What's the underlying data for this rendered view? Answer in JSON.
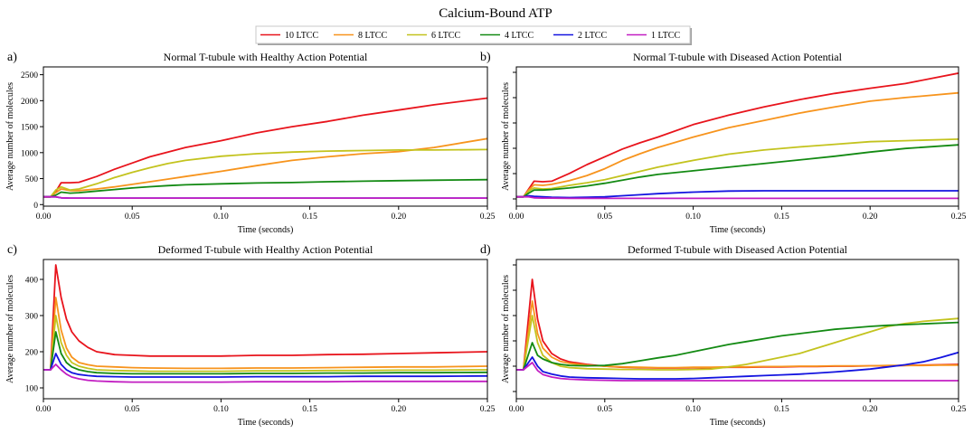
{
  "figure_title": "Calcium-Bound ATP",
  "legend": [
    {
      "label": "10 LTCC",
      "color": "#e8141c"
    },
    {
      "label": "8 LTCC",
      "color": "#f7941d"
    },
    {
      "label": "6 LTCC",
      "color": "#c3c31e"
    },
    {
      "label": "4 LTCC",
      "color": "#138a13"
    },
    {
      "label": "2 LTCC",
      "color": "#1414e0"
    },
    {
      "label": "1 LTCC",
      "color": "#c21ec2"
    }
  ],
  "chart_data": [
    {
      "type": "line",
      "panel_letter": "a)",
      "title": "Normal T-tubule with Healthy Action Potential",
      "xlabel": "Time (seconds)",
      "ylabel": "Average number of molecules",
      "xlim": [
        0,
        0.25
      ],
      "ylim": [
        -30,
        2650
      ],
      "xticks": [
        0,
        0.05,
        0.1,
        0.15,
        0.2,
        0.25
      ],
      "xtick_labels": [
        "0.00",
        "0.05",
        "0.10",
        "0.15",
        "0.20",
        "0.25"
      ],
      "yticks": [
        0,
        500,
        1000,
        1500,
        2000,
        2500
      ],
      "ytick_labels": [
        "0",
        "500",
        "1000",
        "1500",
        "2000",
        "2500"
      ],
      "x": [
        0,
        0.004,
        0.007,
        0.01,
        0.015,
        0.02,
        0.03,
        0.04,
        0.05,
        0.06,
        0.07,
        0.08,
        0.1,
        0.12,
        0.14,
        0.16,
        0.18,
        0.2,
        0.22,
        0.25
      ],
      "series": [
        {
          "name": "10 LTCC",
          "values": [
            150,
            150,
            250,
            420,
            420,
            430,
            540,
            680,
            800,
            920,
            1010,
            1100,
            1230,
            1380,
            1500,
            1600,
            1720,
            1820,
            1920,
            2050
          ]
        },
        {
          "name": "8 LTCC",
          "values": [
            150,
            150,
            230,
            300,
            270,
            270,
            300,
            340,
            390,
            440,
            490,
            540,
            640,
            750,
            850,
            920,
            980,
            1020,
            1100,
            1270
          ]
        },
        {
          "name": "6 LTCC",
          "values": [
            150,
            150,
            280,
            340,
            280,
            300,
            400,
            520,
            620,
            710,
            790,
            850,
            930,
            980,
            1010,
            1030,
            1040,
            1050,
            1050,
            1060
          ]
        },
        {
          "name": "4 LTCC",
          "values": [
            150,
            150,
            180,
            240,
            220,
            230,
            260,
            290,
            320,
            345,
            365,
            380,
            400,
            415,
            425,
            440,
            450,
            460,
            470,
            480
          ]
        },
        {
          "name": "2 LTCC",
          "values": [
            150,
            150,
            150,
            130,
            125,
            125,
            125,
            125,
            125,
            125,
            125,
            125,
            125,
            125,
            125,
            125,
            125,
            125,
            125,
            125
          ]
        },
        {
          "name": "1 LTCC",
          "values": [
            150,
            150,
            150,
            130,
            125,
            125,
            125,
            125,
            125,
            125,
            125,
            125,
            125,
            125,
            125,
            125,
            125,
            125,
            125,
            125
          ]
        }
      ]
    },
    {
      "type": "line",
      "panel_letter": "b)",
      "title": "Normal T-tubule with Diseased Action Potential",
      "xlabel": "Time (seconds)",
      "ylabel": "Average number of molecules",
      "xlim": [
        0,
        0.25
      ],
      "ylim": [
        -30,
        2650
      ],
      "xticks": [
        0,
        0.05,
        0.1,
        0.15,
        0.2,
        0.25
      ],
      "xtick_labels": [
        "0.00",
        "0.05",
        "0.10",
        "0.15",
        "0.20",
        "0.25"
      ],
      "yticks": [],
      "ytick_labels": [],
      "x": [
        0,
        0.004,
        0.007,
        0.01,
        0.015,
        0.02,
        0.03,
        0.04,
        0.05,
        0.06,
        0.07,
        0.08,
        0.1,
        0.12,
        0.14,
        0.16,
        0.18,
        0.2,
        0.22,
        0.25
      ],
      "series": [
        {
          "name": "10 LTCC",
          "values": [
            150,
            150,
            300,
            450,
            440,
            450,
            600,
            770,
            920,
            1070,
            1190,
            1300,
            1540,
            1720,
            1880,
            2020,
            2140,
            2240,
            2330,
            2530
          ]
        },
        {
          "name": "8 LTCC",
          "values": [
            150,
            150,
            280,
            380,
            370,
            390,
            460,
            560,
            690,
            850,
            980,
            1100,
            1300,
            1480,
            1620,
            1760,
            1880,
            1990,
            2060,
            2150
          ]
        },
        {
          "name": "6 LTCC",
          "values": [
            150,
            150,
            260,
            320,
            300,
            310,
            370,
            420,
            480,
            560,
            640,
            720,
            850,
            970,
            1050,
            1110,
            1160,
            1210,
            1230,
            1260
          ]
        },
        {
          "name": "4 LTCC",
          "values": [
            150,
            150,
            220,
            280,
            280,
            290,
            320,
            360,
            410,
            470,
            530,
            580,
            650,
            720,
            790,
            860,
            930,
            1010,
            1080,
            1150
          ]
        },
        {
          "name": "2 LTCC",
          "values": [
            150,
            150,
            170,
            160,
            150,
            140,
            135,
            140,
            150,
            170,
            190,
            210,
            240,
            260,
            265,
            265,
            265,
            265,
            265,
            265
          ]
        },
        {
          "name": "1 LTCC",
          "values": [
            150,
            150,
            150,
            130,
            125,
            125,
            120,
            120,
            120,
            120,
            120,
            120,
            120,
            120,
            120,
            120,
            120,
            120,
            120,
            120
          ]
        }
      ]
    },
    {
      "type": "line",
      "panel_letter": "c)",
      "title": "Deformed T-tubule with Healthy Action Potential",
      "xlabel": "Time (seconds)",
      "ylabel": "Average number of molecules",
      "xlim": [
        0,
        0.25
      ],
      "ylim": [
        70,
        455
      ],
      "xticks": [
        0,
        0.05,
        0.1,
        0.15,
        0.2,
        0.25
      ],
      "xtick_labels": [
        "0.00",
        "0.05",
        "0.10",
        "0.15",
        "0.20",
        "0.25"
      ],
      "yticks": [
        100,
        200,
        300,
        400
      ],
      "ytick_labels": [
        "100",
        "200",
        "300",
        "400"
      ],
      "x": [
        0,
        0.004,
        0.007,
        0.01,
        0.013,
        0.016,
        0.02,
        0.025,
        0.03,
        0.04,
        0.05,
        0.06,
        0.08,
        0.1,
        0.12,
        0.14,
        0.16,
        0.18,
        0.2,
        0.22,
        0.25
      ],
      "series": [
        {
          "name": "10 LTCC",
          "values": [
            150,
            150,
            440,
            350,
            290,
            255,
            230,
            212,
            200,
            192,
            190,
            188,
            188,
            188,
            190,
            190,
            192,
            193,
            195,
            197,
            200
          ]
        },
        {
          "name": "8 LTCC",
          "values": [
            150,
            150,
            350,
            260,
            210,
            185,
            170,
            164,
            160,
            158,
            156,
            155,
            154,
            154,
            155,
            155,
            156,
            157,
            158,
            158,
            160
          ]
        },
        {
          "name": "6 LTCC",
          "values": [
            150,
            150,
            300,
            225,
            190,
            170,
            160,
            154,
            150,
            148,
            147,
            146,
            146,
            146,
            147,
            147,
            148,
            148,
            149,
            149,
            150
          ]
        },
        {
          "name": "4 LTCC",
          "values": [
            150,
            150,
            255,
            195,
            170,
            158,
            150,
            145,
            142,
            140,
            139,
            139,
            139,
            139,
            140,
            140,
            141,
            141,
            142,
            142,
            143
          ]
        },
        {
          "name": "2 LTCC",
          "values": [
            150,
            150,
            195,
            165,
            150,
            142,
            137,
            134,
            132,
            131,
            130,
            130,
            130,
            130,
            131,
            131,
            131,
            132,
            132,
            132,
            133
          ]
        },
        {
          "name": "1 LTCC",
          "values": [
            150,
            150,
            165,
            150,
            138,
            130,
            125,
            121,
            119,
            117,
            116,
            116,
            116,
            116,
            117,
            117,
            117,
            118,
            118,
            118,
            118
          ]
        }
      ]
    },
    {
      "type": "line",
      "panel_letter": "d)",
      "title": "Deformed T-tubule with Diseased Action Potential",
      "xlabel": "Time (seconds)",
      "ylabel": "Average number of molecules",
      "xlim": [
        0,
        0.25
      ],
      "ylim": [
        70,
        455
      ],
      "xticks": [
        0,
        0.05,
        0.1,
        0.15,
        0.2,
        0.25
      ],
      "xtick_labels": [
        "0.00",
        "0.05",
        "0.10",
        "0.15",
        "0.20",
        "0.25"
      ],
      "yticks": [],
      "ytick_labels": [],
      "x": [
        0,
        0.004,
        0.009,
        0.012,
        0.015,
        0.02,
        0.025,
        0.03,
        0.04,
        0.05,
        0.06,
        0.07,
        0.08,
        0.09,
        0.1,
        0.11,
        0.12,
        0.13,
        0.14,
        0.15,
        0.16,
        0.17,
        0.18,
        0.19,
        0.2,
        0.21,
        0.22,
        0.23,
        0.24,
        0.25
      ],
      "series": [
        {
          "name": "10 LTCC",
          "values": [
            150,
            150,
            400,
            290,
            230,
            195,
            180,
            172,
            165,
            160,
            157,
            156,
            155,
            155,
            156,
            156,
            157,
            157,
            158,
            158,
            159,
            159,
            160,
            160,
            161,
            161,
            162,
            163,
            164,
            165
          ]
        },
        {
          "name": "8 LTCC",
          "values": [
            150,
            150,
            340,
            250,
            210,
            185,
            173,
            168,
            163,
            160,
            158,
            157,
            156,
            156,
            157,
            157,
            158,
            158,
            159,
            159,
            160,
            160,
            161,
            161,
            161,
            162,
            162,
            162,
            163,
            163
          ]
        },
        {
          "name": "6 LTCC",
          "values": [
            150,
            150,
            300,
            225,
            190,
            170,
            160,
            156,
            153,
            152,
            151,
            151,
            150,
            150,
            151,
            152,
            158,
            165,
            175,
            185,
            195,
            210,
            225,
            240,
            255,
            270,
            278,
            284,
            288,
            292
          ]
        },
        {
          "name": "4 LTCC",
          "values": [
            150,
            150,
            225,
            190,
            180,
            170,
            165,
            162,
            161,
            162,
            167,
            175,
            183,
            190,
            200,
            210,
            220,
            228,
            236,
            244,
            250,
            256,
            262,
            266,
            270,
            273,
            275,
            277,
            279,
            281
          ]
        },
        {
          "name": "2 LTCC",
          "values": [
            150,
            150,
            185,
            160,
            145,
            138,
            133,
            130,
            128,
            127,
            126,
            125,
            125,
            125,
            126,
            128,
            130,
            132,
            134,
            136,
            138,
            141,
            144,
            148,
            152,
            158,
            164,
            172,
            184,
            198
          ]
        },
        {
          "name": "1 LTCC",
          "values": [
            150,
            150,
            170,
            148,
            137,
            130,
            126,
            124,
            122,
            121,
            120,
            120,
            120,
            120,
            120,
            120,
            120,
            120,
            120,
            120,
            120,
            120,
            120,
            120,
            120,
            120,
            120,
            120,
            120,
            120
          ]
        }
      ]
    }
  ]
}
